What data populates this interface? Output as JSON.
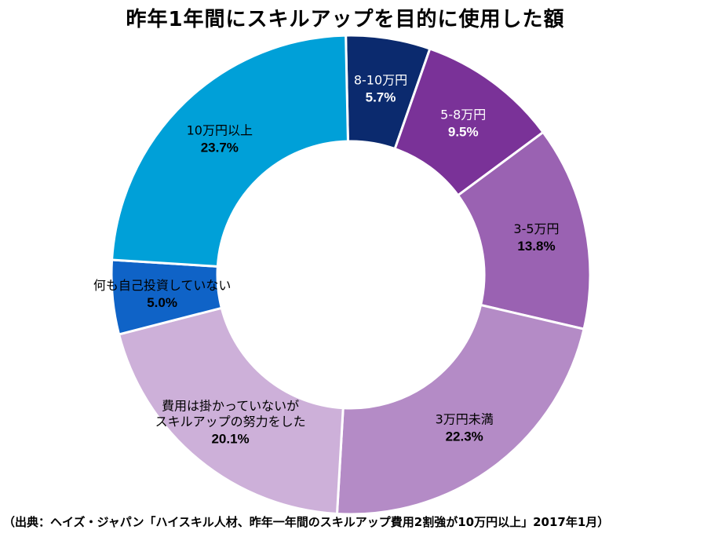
{
  "title": "昨年1年間にスキルアップを目的に使用した額",
  "source": "（出典：ヘイズ・ジャパン「ハイスキル人材、昨年一年間のスキルアップ費用2割強が10万円以上」2017年1月）",
  "chart_data": {
    "type": "pie",
    "variant": "donut",
    "title": "昨年1年間にスキルアップを目的に使用した額",
    "unit": "%",
    "slices": [
      {
        "label": "8-10万円",
        "value": 5.7,
        "display": "5.7%",
        "color": "#0b2a6e",
        "text_color": "#ffffff"
      },
      {
        "label": "5-8万円",
        "value": 9.5,
        "display": "9.5%",
        "color": "#7a3298",
        "text_color": "#ffffff"
      },
      {
        "label": "3-5万円",
        "value": 13.8,
        "display": "13.8%",
        "color": "#9a62b2",
        "text_color": "#000000"
      },
      {
        "label": "3万円未満",
        "value": 22.3,
        "display": "22.3%",
        "color": "#b48bc6",
        "text_color": "#000000"
      },
      {
        "label": "費用は掛かっていないが\nスキルアップの努力をした",
        "value": 20.1,
        "display": "20.1%",
        "color": "#cdb0d9",
        "text_color": "#000000"
      },
      {
        "label": "何も自己投資していない",
        "value": 5.0,
        "display": "5.0%",
        "color": "#0f63c7",
        "text_color": "#000000"
      },
      {
        "label": "10万円以上",
        "value": 23.7,
        "display": "23.7%",
        "color": "#00a0d8",
        "text_color": "#000000"
      }
    ],
    "legend": "none"
  }
}
